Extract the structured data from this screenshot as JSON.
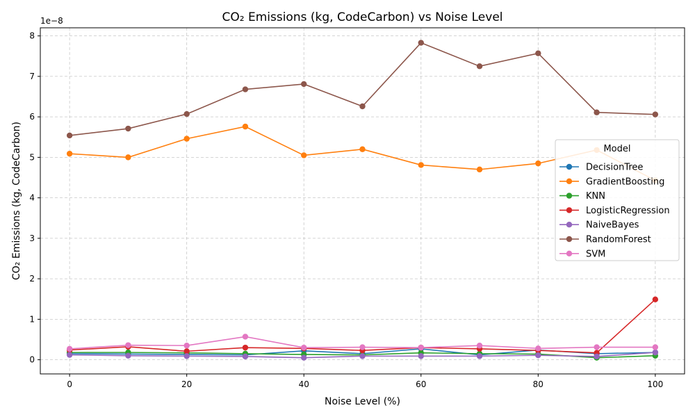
{
  "chart_data": {
    "type": "line",
    "title": "CO₂ Emissions (kg, CodeCarbon) vs Noise Level",
    "xlabel": "Noise Level (%)",
    "ylabel": "CO₂ Emissions (kg, CodeCarbon)",
    "y_offset_text": "1e−8",
    "x": [
      0,
      10,
      20,
      30,
      40,
      50,
      60,
      70,
      80,
      90,
      100
    ],
    "xlim": [
      -5,
      105
    ],
    "ylim": [
      -0.35,
      8.2
    ],
    "y_scale_note": "values in units of 1e-8",
    "xticks": [
      0,
      20,
      40,
      60,
      80,
      100
    ],
    "yticks": [
      0,
      1,
      2,
      3,
      4,
      5,
      6,
      7,
      8
    ],
    "grid": true,
    "legend": {
      "title": "Model",
      "placement": "center-right"
    },
    "series": [
      {
        "name": "DecisionTree",
        "color": "#1f77b4",
        "values": [
          0.15,
          0.14,
          0.13,
          0.12,
          0.22,
          0.15,
          0.27,
          0.12,
          0.24,
          0.15,
          0.18
        ]
      },
      {
        "name": "GradientBoosting",
        "color": "#ff7f0e",
        "values": [
          5.09,
          5.0,
          5.46,
          5.76,
          5.05,
          5.2,
          4.81,
          4.7,
          4.85,
          5.18,
          4.43
        ]
      },
      {
        "name": "KNN",
        "color": "#2ca02c",
        "values": [
          0.18,
          0.18,
          0.17,
          0.15,
          0.13,
          0.12,
          0.17,
          0.15,
          0.14,
          0.05,
          0.1
        ]
      },
      {
        "name": "LogisticRegression",
        "color": "#d62728",
        "values": [
          0.24,
          0.32,
          0.21,
          0.3,
          0.28,
          0.23,
          0.3,
          0.27,
          0.23,
          0.17,
          1.49
        ]
      },
      {
        "name": "NaiveBayes",
        "color": "#9467bd",
        "values": [
          0.12,
          0.1,
          0.09,
          0.08,
          0.05,
          0.09,
          0.09,
          0.09,
          0.11,
          0.08,
          0.18
        ]
      },
      {
        "name": "RandomForest",
        "color": "#8c564b",
        "values": [
          5.54,
          5.71,
          6.07,
          6.68,
          6.81,
          6.26,
          7.83,
          7.25,
          7.57,
          6.11,
          6.06
        ]
      },
      {
        "name": "SVM",
        "color": "#e377c2",
        "values": [
          0.27,
          0.36,
          0.35,
          0.57,
          0.3,
          0.31,
          0.3,
          0.35,
          0.28,
          0.31,
          0.31
        ]
      }
    ]
  }
}
